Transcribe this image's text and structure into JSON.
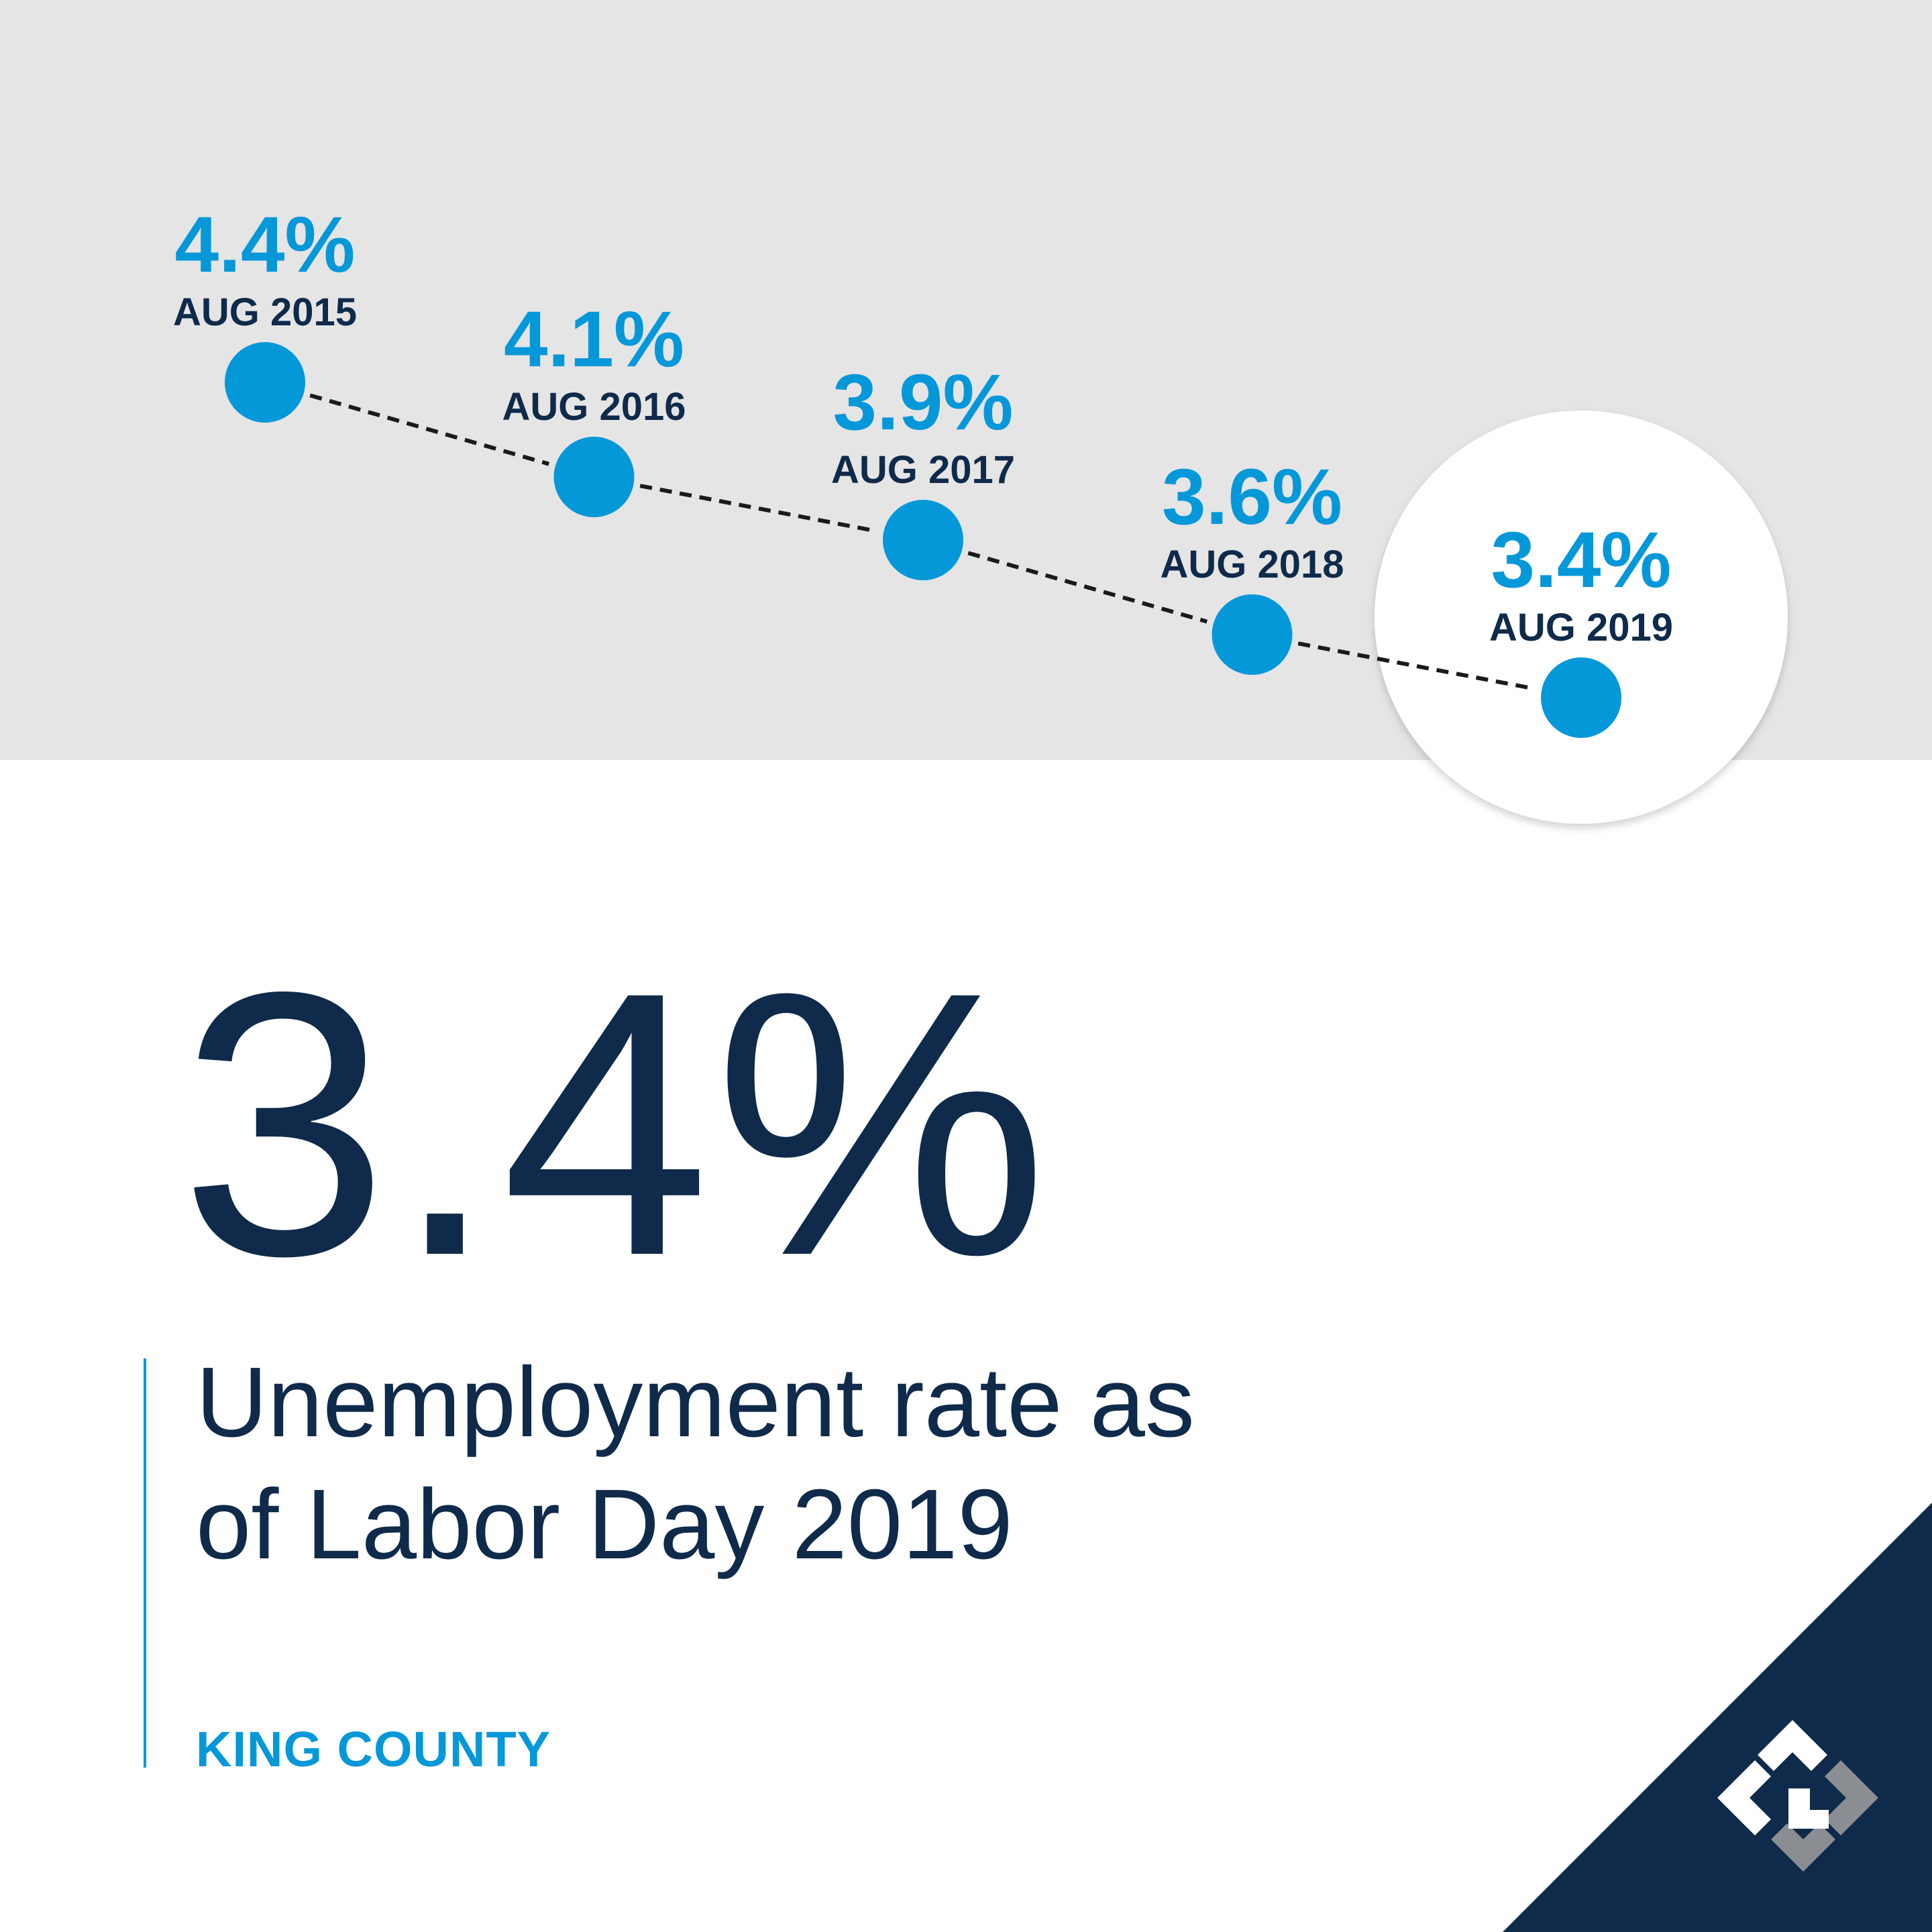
{
  "colors": {
    "accent": "#0598d9",
    "navy": "#0f2a4a",
    "band": "#e5e5e6",
    "logo_gray": "#8a8d91"
  },
  "chart_data": {
    "type": "line",
    "style": "dashed connecting line with circular markers; last point highlighted in a white circle",
    "categories": [
      "AUG 2015",
      "AUG 2016",
      "AUG 2017",
      "AUG 2018",
      "AUG 2019"
    ],
    "values": [
      4.4,
      4.1,
      3.9,
      3.6,
      3.4
    ],
    "value_labels": [
      "4.4%",
      "4.1%",
      "3.9%",
      "3.6%",
      "3.4%"
    ],
    "unit": "%",
    "grid": false,
    "legend": "none"
  },
  "headline": {
    "value": "3.4%",
    "caption_line1": "Unemployment rate as",
    "caption_line2": "of Labor Day 2019",
    "region": "KING COUNTY"
  },
  "logo": {
    "icon": "windermere-logo-icon"
  }
}
